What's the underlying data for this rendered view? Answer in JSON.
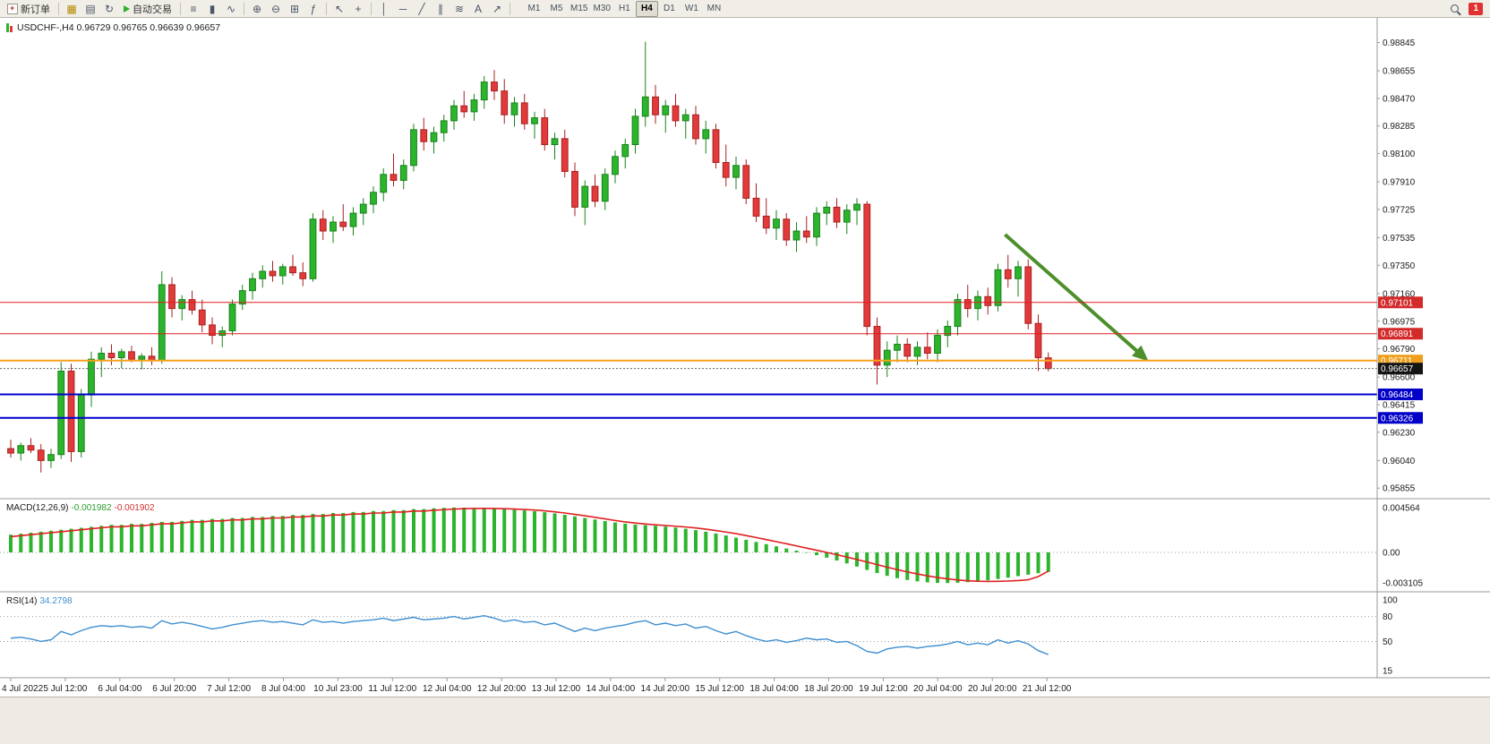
{
  "toolbar": {
    "new_order_label": "新订单",
    "auto_trading_label": "自动交易",
    "icons": {
      "charts": "▦",
      "profiles": "▤",
      "refresh": "↻",
      "bars_chart": "≡",
      "candle_chart": "▮",
      "line_chart": "∿",
      "zoom_in": "⊕",
      "zoom_out": "⊖",
      "tile_windows": "⊞",
      "indicators": "ƒ",
      "cursor": "↖",
      "crosshair": "+",
      "vertical_line": "│",
      "horizontal_line": "─",
      "trend_line": "╱",
      "channel": "∥",
      "fibonacci": "≋",
      "text_tool": "A",
      "arrows_tool": "↗"
    },
    "timeframes": [
      "M1",
      "M5",
      "M15",
      "M30",
      "H1",
      "H4",
      "D1",
      "W1",
      "MN"
    ],
    "active_timeframe": "H4",
    "notification_count": "1"
  },
  "chart": {
    "title": "USDCHF-,H4 0.96729 0.96765 0.96639 0.96657"
  },
  "chart_data": {
    "type": "candlestick",
    "symbol": "USDCHF-",
    "timeframe": "H4",
    "current_ohlc": {
      "open": 0.96729,
      "high": 0.96765,
      "low": 0.96639,
      "close": 0.96657
    },
    "price_axis": {
      "labels": [
        "0.98845",
        "0.98655",
        "0.98470",
        "0.98285",
        "0.98100",
        "0.97910",
        "0.97725",
        "0.97535",
        "0.97350",
        "0.97160",
        "0.96975",
        "0.96790",
        "0.96600",
        "0.96415",
        "0.96230",
        "0.96040",
        "0.95855"
      ]
    },
    "time_labels": [
      "4 Jul 2022",
      "5 Jul 12:00",
      "6 Jul 04:00",
      "6 Jul 20:00",
      "7 Jul 12:00",
      "8 Jul 04:00",
      "10 Jul 23:00",
      "11 Jul 12:00",
      "12 Jul 04:00",
      "12 Jul 20:00",
      "13 Jul 12:00",
      "14 Jul 04:00",
      "14 Jul 20:00",
      "15 Jul 12:00",
      "18 Jul 04:00",
      "18 Jul 20:00",
      "19 Jul 12:00",
      "20 Jul 04:00",
      "20 Jul 20:00",
      "21 Jul 12:00"
    ],
    "candles": [
      [
        0.9612,
        0.9618,
        0.9606,
        0.9609
      ],
      [
        0.9609,
        0.9616,
        0.9604,
        0.9614
      ],
      [
        0.9614,
        0.9619,
        0.9609,
        0.9611
      ],
      [
        0.9611,
        0.9615,
        0.9596,
        0.9604
      ],
      [
        0.9604,
        0.9612,
        0.9599,
        0.9608
      ],
      [
        0.9608,
        0.967,
        0.9605,
        0.9664
      ],
      [
        0.9664,
        0.9669,
        0.9603,
        0.961
      ],
      [
        0.961,
        0.9652,
        0.9606,
        0.9648
      ],
      [
        0.9648,
        0.9677,
        0.964,
        0.9672
      ],
      [
        0.9672,
        0.968,
        0.966,
        0.9676
      ],
      [
        0.9676,
        0.9682,
        0.9668,
        0.9673
      ],
      [
        0.9673,
        0.9679,
        0.9666,
        0.9677
      ],
      [
        0.9677,
        0.9681,
        0.967,
        0.9672
      ],
      [
        0.9672,
        0.9676,
        0.9665,
        0.9674
      ],
      [
        0.9674,
        0.968,
        0.9668,
        0.9671
      ],
      [
        0.9671,
        0.9731,
        0.9669,
        0.9722
      ],
      [
        0.9722,
        0.9727,
        0.97,
        0.9706
      ],
      [
        0.9706,
        0.9715,
        0.9698,
        0.9712
      ],
      [
        0.9712,
        0.9718,
        0.9702,
        0.9705
      ],
      [
        0.9705,
        0.9712,
        0.969,
        0.9695
      ],
      [
        0.9695,
        0.97,
        0.9682,
        0.9688
      ],
      [
        0.9688,
        0.9694,
        0.968,
        0.9691
      ],
      [
        0.9691,
        0.9712,
        0.9688,
        0.9709
      ],
      [
        0.9709,
        0.9722,
        0.9705,
        0.9718
      ],
      [
        0.9718,
        0.973,
        0.9712,
        0.9726
      ],
      [
        0.9726,
        0.9735,
        0.972,
        0.9731
      ],
      [
        0.9731,
        0.9738,
        0.9724,
        0.9728
      ],
      [
        0.9728,
        0.9736,
        0.9722,
        0.9734
      ],
      [
        0.9734,
        0.9742,
        0.9728,
        0.973
      ],
      [
        0.973,
        0.9737,
        0.9721,
        0.9726
      ],
      [
        0.9726,
        0.977,
        0.9724,
        0.9766
      ],
      [
        0.9766,
        0.9772,
        0.9752,
        0.9758
      ],
      [
        0.9758,
        0.9768,
        0.975,
        0.9764
      ],
      [
        0.9764,
        0.9776,
        0.9758,
        0.9761
      ],
      [
        0.9761,
        0.9774,
        0.9755,
        0.977
      ],
      [
        0.977,
        0.978,
        0.9762,
        0.9776
      ],
      [
        0.9776,
        0.9788,
        0.977,
        0.9784
      ],
      [
        0.9784,
        0.98,
        0.9778,
        0.9796
      ],
      [
        0.9796,
        0.981,
        0.9788,
        0.9792
      ],
      [
        0.9792,
        0.9806,
        0.9786,
        0.9802
      ],
      [
        0.9802,
        0.983,
        0.9798,
        0.9826
      ],
      [
        0.9826,
        0.9834,
        0.9812,
        0.9818
      ],
      [
        0.9818,
        0.9828,
        0.981,
        0.9824
      ],
      [
        0.9824,
        0.9836,
        0.9818,
        0.9832
      ],
      [
        0.9832,
        0.9846,
        0.9826,
        0.9842
      ],
      [
        0.9842,
        0.9852,
        0.9834,
        0.9838
      ],
      [
        0.9838,
        0.985,
        0.9832,
        0.9846
      ],
      [
        0.9846,
        0.9862,
        0.984,
        0.9858
      ],
      [
        0.9858,
        0.9866,
        0.9846,
        0.9852
      ],
      [
        0.9852,
        0.986,
        0.983,
        0.9836
      ],
      [
        0.9836,
        0.9848,
        0.9828,
        0.9844
      ],
      [
        0.9844,
        0.985,
        0.9826,
        0.983
      ],
      [
        0.983,
        0.9838,
        0.982,
        0.9834
      ],
      [
        0.9834,
        0.984,
        0.9812,
        0.9816
      ],
      [
        0.9816,
        0.9824,
        0.9806,
        0.982
      ],
      [
        0.982,
        0.9826,
        0.9794,
        0.9798
      ],
      [
        0.9798,
        0.9804,
        0.9768,
        0.9774
      ],
      [
        0.9774,
        0.9792,
        0.9762,
        0.9788
      ],
      [
        0.9788,
        0.9796,
        0.9774,
        0.9778
      ],
      [
        0.9778,
        0.98,
        0.9772,
        0.9796
      ],
      [
        0.9796,
        0.9812,
        0.979,
        0.9808
      ],
      [
        0.9808,
        0.982,
        0.98,
        0.9816
      ],
      [
        0.9816,
        0.984,
        0.981,
        0.9835
      ],
      [
        0.9835,
        0.9885,
        0.9828,
        0.9848
      ],
      [
        0.9848,
        0.9856,
        0.983,
        0.9836
      ],
      [
        0.9836,
        0.9846,
        0.9824,
        0.9842
      ],
      [
        0.9842,
        0.985,
        0.9828,
        0.9832
      ],
      [
        0.9832,
        0.984,
        0.982,
        0.9836
      ],
      [
        0.9836,
        0.9842,
        0.9816,
        0.982
      ],
      [
        0.982,
        0.9832,
        0.981,
        0.9826
      ],
      [
        0.9826,
        0.983,
        0.98,
        0.9804
      ],
      [
        0.9804,
        0.9816,
        0.9788,
        0.9794
      ],
      [
        0.9794,
        0.9808,
        0.9786,
        0.9802
      ],
      [
        0.9802,
        0.9806,
        0.9776,
        0.978
      ],
      [
        0.978,
        0.979,
        0.9764,
        0.9768
      ],
      [
        0.9768,
        0.978,
        0.9756,
        0.976
      ],
      [
        0.976,
        0.9772,
        0.9752,
        0.9766
      ],
      [
        0.9766,
        0.977,
        0.9748,
        0.9752
      ],
      [
        0.9752,
        0.9764,
        0.9744,
        0.9758
      ],
      [
        0.9758,
        0.9768,
        0.975,
        0.9754
      ],
      [
        0.9754,
        0.9774,
        0.9748,
        0.977
      ],
      [
        0.977,
        0.9778,
        0.9762,
        0.9774
      ],
      [
        0.9774,
        0.978,
        0.976,
        0.9764
      ],
      [
        0.9764,
        0.9776,
        0.9756,
        0.9772
      ],
      [
        0.9772,
        0.978,
        0.9762,
        0.9776
      ],
      [
        0.9776,
        0.9778,
        0.9688,
        0.9694
      ],
      [
        0.9694,
        0.97,
        0.9655,
        0.9668
      ],
      [
        0.9668,
        0.9684,
        0.966,
        0.9678
      ],
      [
        0.9678,
        0.9688,
        0.967,
        0.9682
      ],
      [
        0.9682,
        0.9686,
        0.967,
        0.9674
      ],
      [
        0.9674,
        0.9684,
        0.9668,
        0.968
      ],
      [
        0.968,
        0.969,
        0.9672,
        0.9676
      ],
      [
        0.9676,
        0.9692,
        0.967,
        0.9688
      ],
      [
        0.9688,
        0.9698,
        0.968,
        0.9694
      ],
      [
        0.9694,
        0.9716,
        0.9688,
        0.9712
      ],
      [
        0.9712,
        0.9722,
        0.97,
        0.9706
      ],
      [
        0.9706,
        0.9718,
        0.9698,
        0.9714
      ],
      [
        0.9714,
        0.972,
        0.9702,
        0.9708
      ],
      [
        0.9708,
        0.9736,
        0.9704,
        0.9732
      ],
      [
        0.9732,
        0.9742,
        0.972,
        0.9726
      ],
      [
        0.9726,
        0.9738,
        0.9714,
        0.9734
      ],
      [
        0.9734,
        0.9739,
        0.9692,
        0.9696
      ],
      [
        0.9696,
        0.9702,
        0.9664,
        0.9673
      ],
      [
        0.96729,
        0.96765,
        0.96639,
        0.96657
      ]
    ],
    "levels": [
      {
        "price": 0.97101,
        "label": "0.97101",
        "color": "#e01b1b",
        "bg": "#d32a2a",
        "width": 1,
        "style": "solid",
        "role": "resistance-line"
      },
      {
        "price": 0.96891,
        "label": "0.96891",
        "color": "#e01b1b",
        "bg": "#d32a2a",
        "width": 1,
        "style": "solid",
        "role": "resistance-line"
      },
      {
        "price": 0.96711,
        "label": "0.96711",
        "color": "#f6a21d",
        "bg": "#ef9f1d",
        "width": 2,
        "style": "solid",
        "role": "pivot-line"
      },
      {
        "price": 0.96657,
        "label": "0.96657",
        "color": "#666666",
        "bg": "#141414",
        "width": 1,
        "style": "dotted",
        "role": "current-price-line"
      },
      {
        "price": 0.96484,
        "label": "0.96484",
        "color": "#0000d0",
        "bg": "#0000c8",
        "width": 2,
        "style": "solid",
        "role": "support-line"
      },
      {
        "price": 0.96326,
        "label": "0.96326",
        "color": "#0000d0",
        "bg": "#0000c8",
        "width": 2,
        "style": "solid",
        "role": "support-line"
      }
    ],
    "trend_arrow": {
      "from": {
        "bar": 98.7,
        "price": 0.97556
      },
      "to": {
        "bar": 112.6,
        "price": 0.96727
      },
      "color": "#4e8f2c"
    },
    "macd": {
      "label": "MACD(12,26,9)",
      "value": "-0.001982",
      "signal_value": "-0.001902",
      "axis_labels": [
        "0.004564",
        "0.00",
        "-0.003105"
      ],
      "histogram": [
        0.0018,
        0.0019,
        0.002,
        0.0021,
        0.0022,
        0.0023,
        0.0024,
        0.0025,
        0.0026,
        0.0027,
        0.0028,
        0.0028,
        0.0029,
        0.0029,
        0.003,
        0.0031,
        0.0031,
        0.0032,
        0.0033,
        0.0033,
        0.0034,
        0.0034,
        0.0035,
        0.0035,
        0.0036,
        0.0036,
        0.0037,
        0.0037,
        0.0038,
        0.0038,
        0.0039,
        0.0039,
        0.004,
        0.004,
        0.0041,
        0.0041,
        0.0042,
        0.0042,
        0.0043,
        0.0043,
        0.0044,
        0.0044,
        0.00448,
        0.00452,
        0.00456,
        0.00454,
        0.0045,
        0.00446,
        0.00442,
        0.00438,
        0.00432,
        0.00426,
        0.00418,
        0.00408,
        0.00396,
        0.00382,
        0.00366,
        0.0035,
        0.00334,
        0.00318,
        0.00304,
        0.00292,
        0.00282,
        0.00276,
        0.0027,
        0.00262,
        0.00252,
        0.0024,
        0.00226,
        0.0021,
        0.00192,
        0.00172,
        0.0015,
        0.00128,
        0.00106,
        0.00084,
        0.00062,
        0.0004,
        0.00018,
        -4e-05,
        -0.00028,
        -0.00054,
        -0.00082,
        -0.00112,
        -0.00144,
        -0.00178,
        -0.0021,
        -0.00238,
        -0.00262,
        -0.0028,
        -0.00294,
        -0.00304,
        -0.0031,
        -0.00311,
        -0.00308,
        -0.00302,
        -0.00294,
        -0.00283,
        -0.0027,
        -0.00256,
        -0.00241,
        -0.00226,
        -0.00211,
        -0.00198
      ],
      "signal": [
        0.0016,
        0.0017,
        0.0018,
        0.0019,
        0.002,
        0.0021,
        0.0022,
        0.0023,
        0.0024,
        0.0025,
        0.0026,
        0.0026,
        0.0027,
        0.0027,
        0.0028,
        0.0029,
        0.0029,
        0.003,
        0.0031,
        0.0031,
        0.0032,
        0.0032,
        0.0033,
        0.0033,
        0.0034,
        0.0034,
        0.0035,
        0.0035,
        0.0036,
        0.0036,
        0.0037,
        0.0037,
        0.0038,
        0.0038,
        0.0039,
        0.0039,
        0.004,
        0.004,
        0.0041,
        0.0041,
        0.0042,
        0.0042,
        0.00428,
        0.00434,
        0.0044,
        0.00444,
        0.00446,
        0.00447,
        0.00446,
        0.00444,
        0.0044,
        0.00436,
        0.0043,
        0.00422,
        0.00412,
        0.004,
        0.00386,
        0.00372,
        0.00356,
        0.0034,
        0.00324,
        0.0031,
        0.00298,
        0.00288,
        0.0028,
        0.00273,
        0.00266,
        0.00258,
        0.00248,
        0.00236,
        0.00222,
        0.00207,
        0.0019,
        0.00171,
        0.00151,
        0.0013,
        0.00109,
        0.00088,
        0.00066,
        0.00044,
        0.00022,
        0.0,
        -0.00023,
        -0.00047,
        -0.00072,
        -0.00098,
        -0.00124,
        -0.0015,
        -0.00175,
        -0.00198,
        -0.00219,
        -0.00238,
        -0.00255,
        -0.00269,
        -0.0028,
        -0.00288,
        -0.00293,
        -0.00295,
        -0.00294,
        -0.00291,
        -0.00286,
        -0.00278,
        -0.00245,
        -0.0019
      ]
    },
    "rsi": {
      "label": "RSI(14)",
      "value": "34.2798",
      "axis_labels": [
        "100",
        "80",
        "50",
        "15"
      ],
      "level_lines": [
        80,
        50
      ],
      "values": [
        54,
        55,
        53,
        50,
        52,
        62,
        58,
        63,
        67,
        69,
        68,
        69,
        67,
        68,
        66,
        75,
        71,
        73,
        71,
        68,
        65,
        67,
        70,
        72,
        74,
        75,
        73,
        74,
        72,
        70,
        76,
        73,
        74,
        72,
        74,
        75,
        76,
        78,
        75,
        77,
        79,
        76,
        77,
        78,
        80,
        77,
        79,
        81,
        78,
        74,
        76,
        73,
        74,
        70,
        72,
        67,
        62,
        66,
        63,
        66,
        68,
        70,
        73,
        75,
        70,
        72,
        69,
        71,
        66,
        68,
        63,
        59,
        62,
        57,
        53,
        50,
        52,
        49,
        51,
        54,
        52,
        53,
        49,
        50,
        45,
        38,
        36,
        41,
        43,
        44,
        42,
        44,
        45,
        47,
        50,
        46,
        48,
        46,
        52,
        48,
        51,
        47,
        39,
        34.28
      ]
    },
    "colors": {
      "up": "#2db42d",
      "up_border": "#18821a",
      "down": "#e23a3a",
      "down_border": "#a82020",
      "macd_hist": "#2db42d",
      "macd_signal": "#e02020",
      "rsi_line": "#3f8fd0",
      "axis_text": "#1a1a1a"
    }
  }
}
